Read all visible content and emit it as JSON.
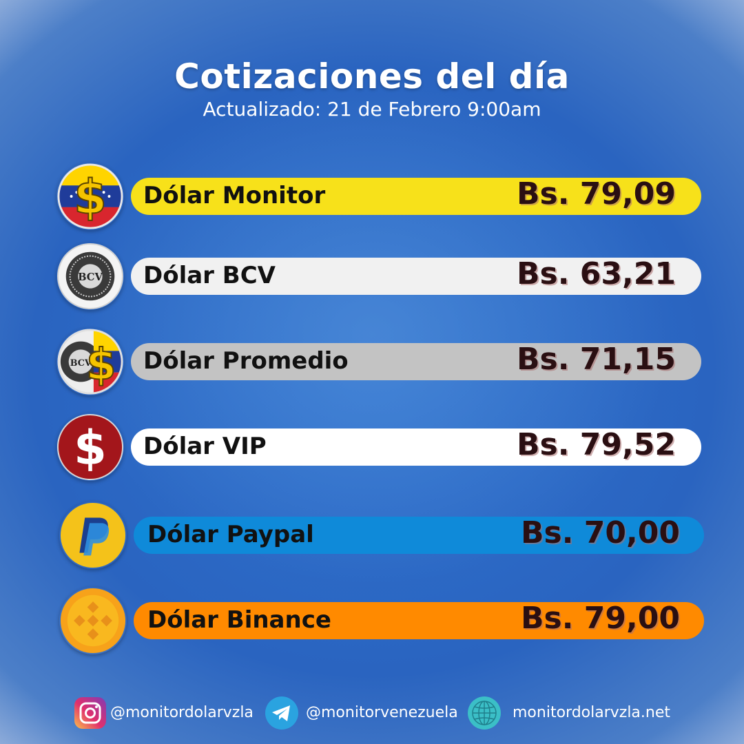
{
  "header": {
    "title": "Cotizaciones del día",
    "subtitle": "Actualizado: 21 de Febrero 9:00am"
  },
  "rates": [
    {
      "label": "Dólar Monitor",
      "price": "Bs. 79,09",
      "icon": "venezuela-dollar-icon",
      "bar_color": "#f7e11a"
    },
    {
      "label": "Dólar BCV",
      "price": "Bs. 63,21",
      "icon": "bcv-seal-icon",
      "bar_color": "#f1f1f1"
    },
    {
      "label": "Dólar Promedio",
      "price": "Bs. 71,15",
      "icon": "bcv-dollar-icon",
      "bar_color": "#c3c3c3"
    },
    {
      "label": "Dólar VIP",
      "price": "Bs. 79,52",
      "icon": "dollar-sign-icon",
      "bar_color": "#ffffff"
    },
    {
      "label": "Dólar Paypal",
      "price": "Bs. 70,00",
      "icon": "paypal-icon",
      "bar_color": "#0f8ad9"
    },
    {
      "label": "Dólar Binance",
      "price": "Bs. 79,00",
      "icon": "binance-icon",
      "bar_color": "#ff8a00"
    }
  ],
  "footer": {
    "instagram": "@monitordolarvzla",
    "telegram": "@monitorvenezuela",
    "website": "monitordolarvzla.net"
  }
}
